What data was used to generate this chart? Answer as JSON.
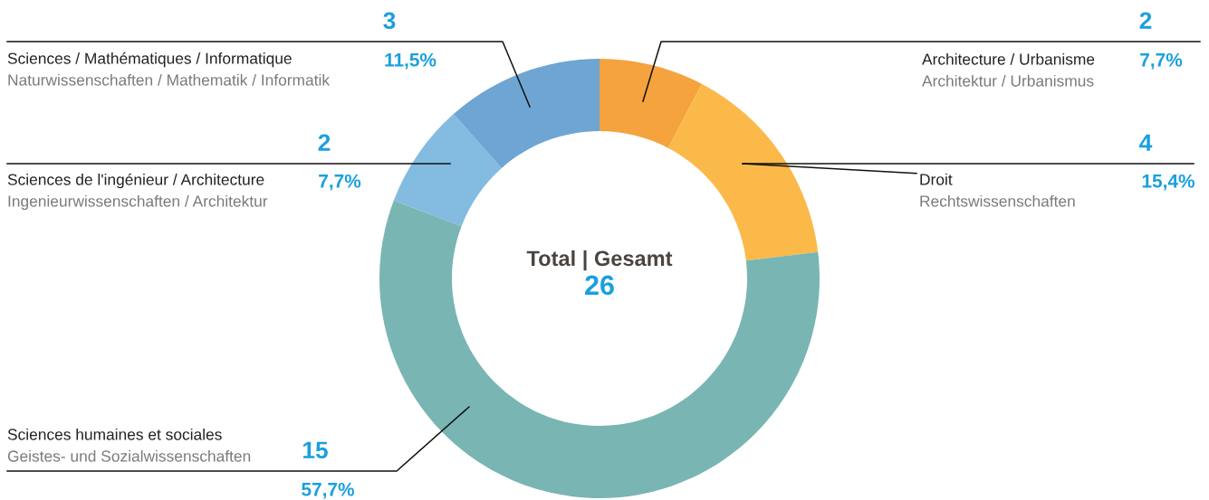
{
  "chart_data": {
    "type": "donut",
    "categories": [
      "Architecture / Urbanisme\nArchitektur / Urbanismus",
      "Droit\nRechtswissenschaften",
      "Sciences humaines et sociales\nGeistes- und Sozialwissenschaften",
      "Sciences de l'ingénieur / Architecture\nIngenieurwissenschaften / Architektur",
      "Sciences / Mathématiques / Informatique\nNaturwissenschaften / Mathematik / Informatik"
    ],
    "values": [
      2,
      4,
      15,
      2,
      3
    ],
    "colors": [
      "#f5a33e",
      "#fbb94a",
      "#79b5b3",
      "#84bbe0",
      "#6ea5d2"
    ],
    "value_labels": [
      "2\n7,7%",
      "4\n15,4%",
      "15\n57,7%",
      "2\n7,7%",
      "3\n11,5%"
    ],
    "annotations": [
      "Total | Gesamt",
      "26"
    ]
  }
}
